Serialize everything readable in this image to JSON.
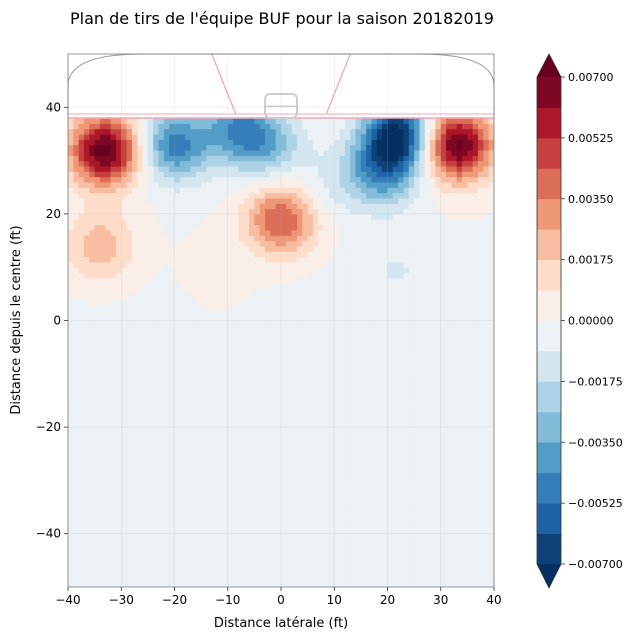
{
  "chart_data": {
    "type": "heatmap",
    "title": "Plan de tirs de l'équipe BUF pour la saison 20182019",
    "xlabel": "Distance latérale (ft)",
    "ylabel": "Distance depuis le centre (ft)",
    "xlim": [
      -40,
      40
    ],
    "ylim": [
      -50,
      50
    ],
    "xticks": [
      -40,
      -30,
      -20,
      -10,
      0,
      10,
      20,
      30,
      40
    ],
    "yticks": [
      -40,
      -20,
      0,
      20,
      40
    ],
    "xtick_labels": [
      "−40",
      "−30",
      "−20",
      "−10",
      "0",
      "10",
      "20",
      "30",
      "40"
    ],
    "ytick_labels": [
      "−40",
      "−20",
      "0",
      "20",
      "40"
    ],
    "grid": true,
    "colormap": "RdBu_r",
    "colorbar": {
      "min": -0.007,
      "max": 0.007,
      "step": 0.000875,
      "extend": "both",
      "tick_values": [
        0.007,
        0.00525,
        0.0035,
        0.00175,
        0.0,
        -0.00175,
        -0.0035,
        -0.00525,
        -0.007
      ],
      "tick_labels": [
        "0.00700",
        "0.00525",
        "0.00350",
        "0.00175",
        "0.00000",
        "−0.00175",
        "−0.00350",
        "−0.00525",
        "−0.00700"
      ]
    },
    "hotspots": [
      {
        "x": -33,
        "y": 32,
        "value": 0.0075
      },
      {
        "x": 33,
        "y": 33,
        "value": 0.0075
      },
      {
        "x": 0,
        "y": 19,
        "value": 0.0045
      },
      {
        "x": -34,
        "y": 14,
        "value": 0.0024
      },
      {
        "x": -12,
        "y": 9,
        "value": 0.0005
      },
      {
        "x": -20,
        "y": 33,
        "value": -0.0048
      },
      {
        "x": -8,
        "y": 36,
        "value": -0.004
      },
      {
        "x": -2,
        "y": 33,
        "value": -0.0025
      },
      {
        "x": 22,
        "y": 35,
        "value": -0.0072
      },
      {
        "x": 19,
        "y": 28,
        "value": -0.004
      },
      {
        "x": 22,
        "y": 10,
        "value": -0.0008
      },
      {
        "x": 10,
        "y": 26,
        "value": -0.001
      },
      {
        "x": 12,
        "y": 2,
        "value": -0.0006
      }
    ],
    "rink": {
      "goal_line_y": 38,
      "end_boards_y": 50,
      "crease_center_x": 0,
      "net_center_x": 0
    },
    "colors": {
      "dark_red": "#67001f",
      "dark_blue": "#053061",
      "neutral": "#f7f7f7",
      "rink_line": "#f4a6b4",
      "net": "#cccccc"
    }
  }
}
